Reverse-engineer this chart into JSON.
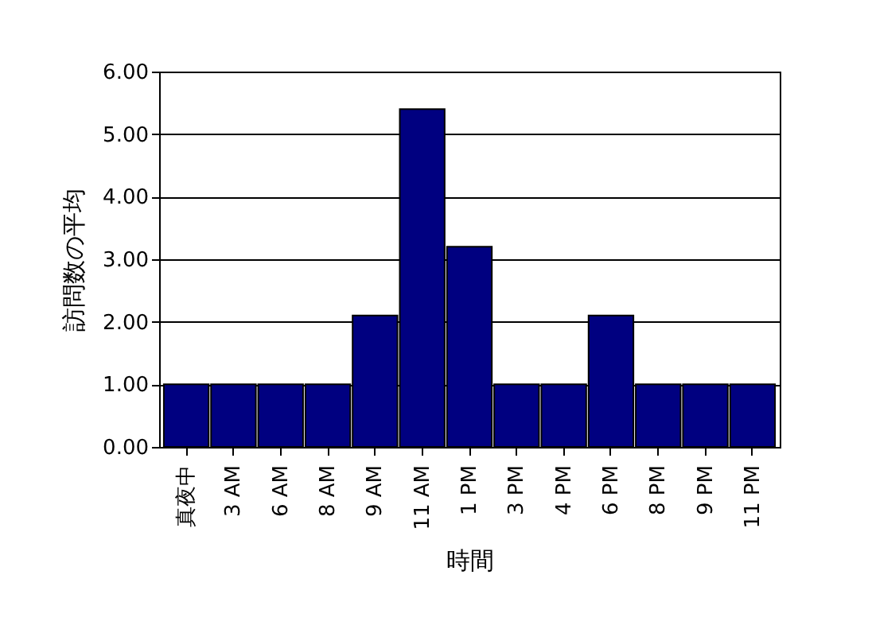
{
  "chart_data": {
    "type": "bar",
    "xlabel": "時間",
    "ylabel": "訪問数の平均",
    "categories": [
      "真夜中",
      "3 AM",
      "6 AM",
      "8 AM",
      "9 AM",
      "11 AM",
      "1 PM",
      "3 PM",
      "4 PM",
      "6 PM",
      "8 PM",
      "9 PM",
      "11 PM"
    ],
    "values": [
      1,
      1,
      1,
      1,
      2.1,
      5.4,
      3.2,
      1,
      1,
      2.1,
      1,
      1,
      1
    ],
    "color": "#000080",
    "ylim": [
      0,
      6
    ],
    "yticks": [
      {
        "value": 0,
        "label": "0.00"
      },
      {
        "value": 1,
        "label": "1.00"
      },
      {
        "value": 2,
        "label": "2.00"
      },
      {
        "value": 3,
        "label": "3.00"
      },
      {
        "value": 4,
        "label": "4.00"
      },
      {
        "value": 5,
        "label": "5.00"
      },
      {
        "value": 6,
        "label": "6.00"
      }
    ],
    "grid": "y"
  }
}
